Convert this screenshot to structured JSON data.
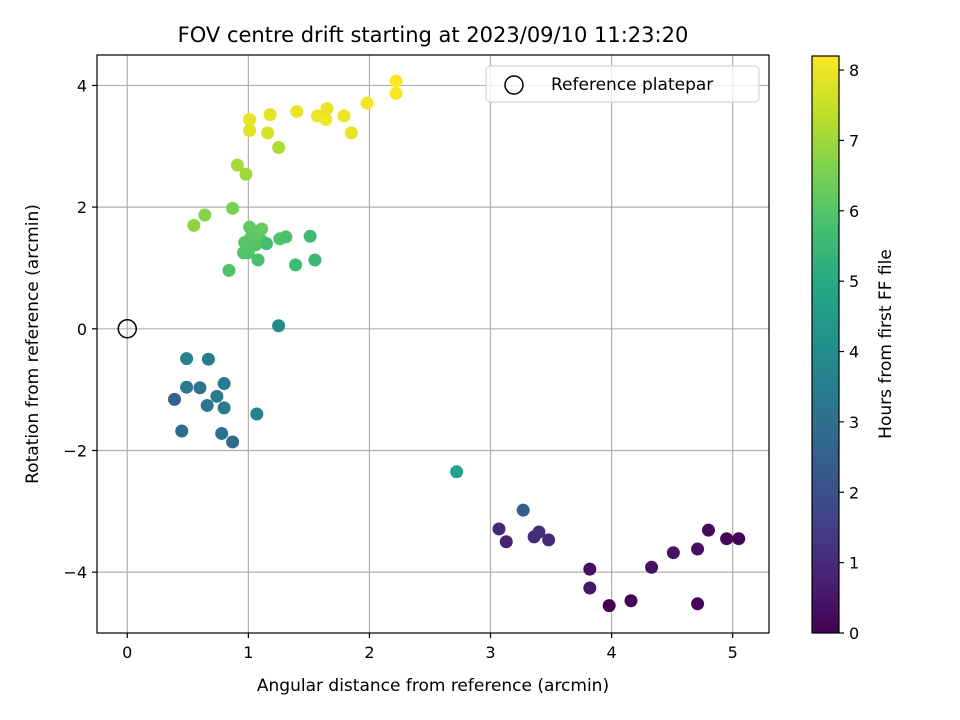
{
  "chart_data": {
    "type": "scatter",
    "title": "FOV centre drift starting at 2023/09/10 11:23:20",
    "xlabel": "Angular distance from reference (arcmin)",
    "ylabel": "Rotation from reference (arcmin)",
    "xlim": [
      -0.25,
      5.3
    ],
    "ylim": [
      -5.0,
      4.5
    ],
    "xticks": [
      0,
      1,
      2,
      3,
      4,
      5
    ],
    "xtick_labels": [
      "0",
      "1",
      "2",
      "3",
      "4",
      "5"
    ],
    "yticks": [
      -4,
      -2,
      0,
      2,
      4
    ],
    "ytick_labels": [
      "−4",
      "−2",
      "0",
      "2",
      "4"
    ],
    "grid": true,
    "legend": {
      "position": "top-right",
      "entries": [
        "Reference platepar"
      ]
    },
    "reference_point": {
      "x": 0,
      "y": 0,
      "label": "Reference platepar",
      "marker": "open-circle"
    },
    "colorbar": {
      "label": "Hours from first FF file",
      "colormap": "viridis",
      "range": [
        0,
        8.2
      ],
      "ticks": [
        0,
        1,
        2,
        3,
        4,
        5,
        6,
        7,
        8
      ],
      "tick_labels": [
        "0",
        "1",
        "2",
        "3",
        "4",
        "5",
        "6",
        "7",
        "8"
      ]
    },
    "points": [
      {
        "x": 3.98,
        "y": -4.55,
        "c": 0.0
      },
      {
        "x": 4.16,
        "y": -4.47,
        "c": 0.1
      },
      {
        "x": 4.71,
        "y": -4.52,
        "c": 0.15
      },
      {
        "x": 4.95,
        "y": -3.45,
        "c": 0.1
      },
      {
        "x": 5.05,
        "y": -3.45,
        "c": 0.05
      },
      {
        "x": 4.8,
        "y": -3.31,
        "c": 0.2
      },
      {
        "x": 4.71,
        "y": -3.62,
        "c": 0.3
      },
      {
        "x": 4.51,
        "y": -3.68,
        "c": 0.45
      },
      {
        "x": 4.33,
        "y": -3.92,
        "c": 0.35
      },
      {
        "x": 3.82,
        "y": -3.95,
        "c": 0.4
      },
      {
        "x": 3.82,
        "y": -4.26,
        "c": 0.55
      },
      {
        "x": 3.07,
        "y": -3.29,
        "c": 0.9
      },
      {
        "x": 3.13,
        "y": -3.5,
        "c": 0.8
      },
      {
        "x": 3.36,
        "y": -3.42,
        "c": 0.95
      },
      {
        "x": 3.4,
        "y": -3.34,
        "c": 1.05
      },
      {
        "x": 3.48,
        "y": -3.47,
        "c": 1.0
      },
      {
        "x": 3.27,
        "y": -2.98,
        "c": 2.4
      },
      {
        "x": 2.72,
        "y": -2.35,
        "c": 4.7
      },
      {
        "x": 0.39,
        "y": -1.16,
        "c": 2.5
      },
      {
        "x": 0.45,
        "y": -1.68,
        "c": 2.9
      },
      {
        "x": 0.78,
        "y": -1.72,
        "c": 3.0
      },
      {
        "x": 0.87,
        "y": -1.86,
        "c": 2.85
      },
      {
        "x": 0.49,
        "y": -0.96,
        "c": 3.3
      },
      {
        "x": 0.6,
        "y": -0.97,
        "c": 3.2
      },
      {
        "x": 0.66,
        "y": -1.26,
        "c": 3.25
      },
      {
        "x": 0.74,
        "y": -1.11,
        "c": 3.35
      },
      {
        "x": 0.8,
        "y": -0.9,
        "c": 3.4
      },
      {
        "x": 0.8,
        "y": -1.3,
        "c": 3.3
      },
      {
        "x": 0.49,
        "y": -0.49,
        "c": 3.5
      },
      {
        "x": 0.67,
        "y": -0.5,
        "c": 3.45
      },
      {
        "x": 1.07,
        "y": -1.4,
        "c": 3.6
      },
      {
        "x": 1.25,
        "y": 0.05,
        "c": 3.9
      },
      {
        "x": 0.84,
        "y": 0.96,
        "c": 5.9
      },
      {
        "x": 1.08,
        "y": 1.13,
        "c": 5.8
      },
      {
        "x": 1.39,
        "y": 1.05,
        "c": 5.6
      },
      {
        "x": 1.55,
        "y": 1.13,
        "c": 5.5
      },
      {
        "x": 0.96,
        "y": 1.25,
        "c": 5.9
      },
      {
        "x": 1.0,
        "y": 1.25,
        "c": 5.95
      },
      {
        "x": 0.97,
        "y": 1.42,
        "c": 6.0
      },
      {
        "x": 1.02,
        "y": 1.5,
        "c": 6.1
      },
      {
        "x": 1.06,
        "y": 1.38,
        "c": 5.95
      },
      {
        "x": 1.11,
        "y": 1.45,
        "c": 6.05
      },
      {
        "x": 1.15,
        "y": 1.4,
        "c": 5.7
      },
      {
        "x": 1.26,
        "y": 1.48,
        "c": 5.9
      },
      {
        "x": 1.31,
        "y": 1.51,
        "c": 5.85
      },
      {
        "x": 1.51,
        "y": 1.52,
        "c": 5.6
      },
      {
        "x": 1.01,
        "y": 1.67,
        "c": 6.2
      },
      {
        "x": 1.06,
        "y": 1.55,
        "c": 6.15
      },
      {
        "x": 1.11,
        "y": 1.64,
        "c": 6.25
      },
      {
        "x": 0.55,
        "y": 1.7,
        "c": 6.8
      },
      {
        "x": 0.64,
        "y": 1.87,
        "c": 6.7
      },
      {
        "x": 0.87,
        "y": 1.98,
        "c": 6.5
      },
      {
        "x": 0.98,
        "y": 2.54,
        "c": 7.0
      },
      {
        "x": 0.91,
        "y": 2.69,
        "c": 7.1
      },
      {
        "x": 1.25,
        "y": 2.98,
        "c": 7.2
      },
      {
        "x": 1.01,
        "y": 3.26,
        "c": 7.8
      },
      {
        "x": 1.16,
        "y": 3.22,
        "c": 7.7
      },
      {
        "x": 1.01,
        "y": 3.44,
        "c": 7.9
      },
      {
        "x": 1.18,
        "y": 3.52,
        "c": 7.85
      },
      {
        "x": 1.4,
        "y": 3.57,
        "c": 7.9
      },
      {
        "x": 1.57,
        "y": 3.5,
        "c": 8.0
      },
      {
        "x": 1.64,
        "y": 3.44,
        "c": 8.05
      },
      {
        "x": 1.65,
        "y": 3.62,
        "c": 7.95
      },
      {
        "x": 1.79,
        "y": 3.5,
        "c": 8.0
      },
      {
        "x": 1.85,
        "y": 3.22,
        "c": 7.9
      },
      {
        "x": 1.98,
        "y": 3.71,
        "c": 8.1
      },
      {
        "x": 2.22,
        "y": 3.87,
        "c": 8.15
      },
      {
        "x": 2.22,
        "y": 4.07,
        "c": 8.2
      }
    ]
  }
}
